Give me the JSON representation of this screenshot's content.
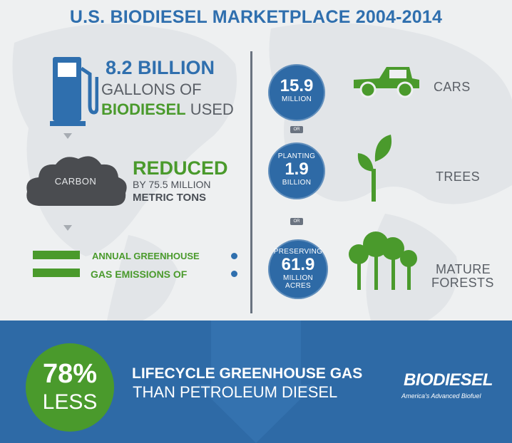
{
  "title": "U.S. BIODIESEL MARKETPLACE 2004-2014",
  "gallons": {
    "amount": "8.2 BILLION",
    "line2": "GALLONS OF",
    "highlight": "BIODIESEL",
    "rest": " USED"
  },
  "carbon": {
    "cloud_label": "CARBON",
    "reduced": "REDUCED",
    "by": "BY 75.5 MILLION",
    "unit": "METRIC TONS"
  },
  "equals": {
    "line1": "ANNUAL GREENHOUSE",
    "line2": "GAS EMISSIONS OF"
  },
  "or_label": "OR",
  "equivalents": [
    {
      "top": "",
      "value": "15.9",
      "bottom": "MILLION",
      "extra": "",
      "label1": "CARS",
      "label2": ""
    },
    {
      "top": "PLANTING",
      "value": "1.9",
      "bottom": "BILLION",
      "extra": "",
      "label1": "TREES",
      "label2": ""
    },
    {
      "top": "PRESERVING",
      "value": "61.9",
      "bottom": "MILLION",
      "extra": "ACRES",
      "label1": "MATURE",
      "label2": "FORESTS"
    }
  ],
  "bottom": {
    "percent": "78%",
    "less": "LESS",
    "line1": "LIFECYCLE GREENHOUSE GAS",
    "line2": "THAN PETROLEUM DIESEL"
  },
  "logo": {
    "text": "BIODIESEL",
    "tagline": "America's Advanced Biofuel"
  },
  "colors": {
    "blue": "#2f6fae",
    "green": "#4a9a2c",
    "gray": "#5a5f66",
    "band": "#2e6aa6"
  }
}
